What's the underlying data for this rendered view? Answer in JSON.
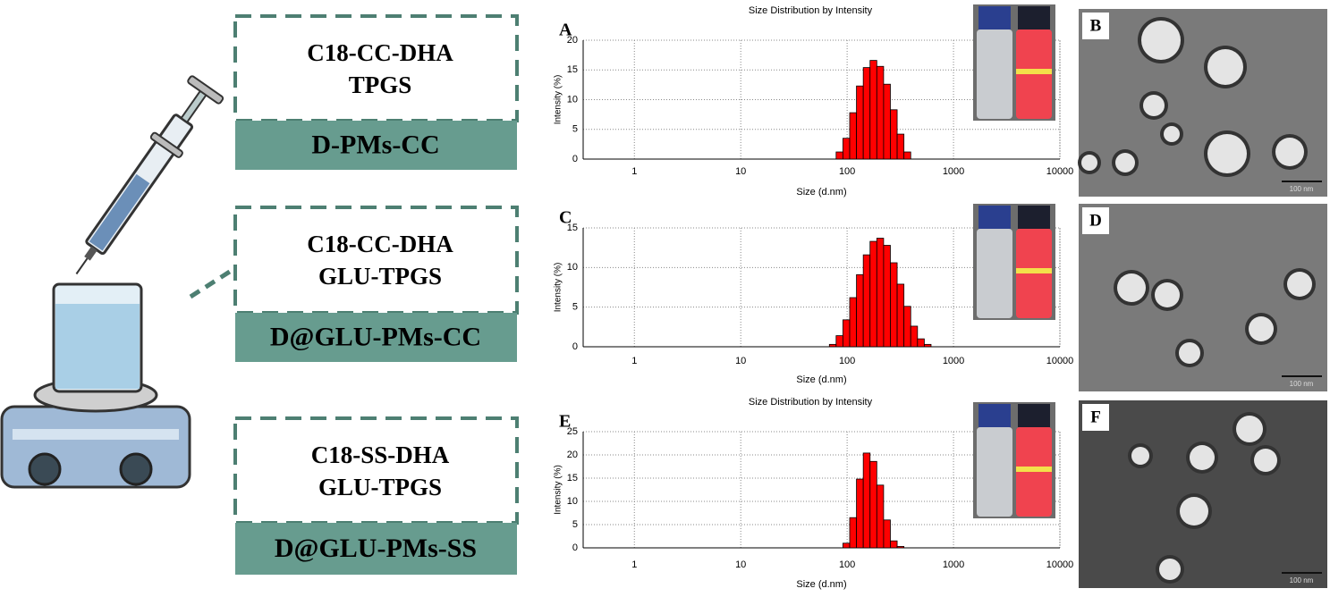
{
  "formulations": [
    {
      "lines": [
        "C18-CC-DHA",
        "TPGS"
      ],
      "name": "D-PMs-CC"
    },
    {
      "lines": [
        "C18-CC-DHA",
        "GLU-TPGS"
      ],
      "name": "D@GLU-PMs-CC"
    },
    {
      "lines": [
        "C18-SS-DHA",
        "GLU-TPGS"
      ],
      "name": "D@GLU-PMs-SS"
    }
  ],
  "tem_panels": [
    {
      "label": "B",
      "scale": "100 nm"
    },
    {
      "label": "D",
      "scale": "100 nm"
    },
    {
      "label": "F",
      "scale": "100 nm"
    }
  ],
  "chart_data": [
    {
      "type": "histogram",
      "panel": "A",
      "title": "Size Distribution by Intensity",
      "x_label": "Size (d.nm)",
      "y_label": "Intensity (%)",
      "bins": [
        78.8,
        91.3,
        105.7,
        122.4,
        141.8,
        164.2,
        190.1,
        220.2,
        255.0,
        295.3,
        342.0,
        396.1
      ],
      "values": [
        1.2,
        3.5,
        7.8,
        12.3,
        15.4,
        16.6,
        15.6,
        12.6,
        8.3,
        4.2,
        1.2
      ],
      "color": "#ff0000",
      "log_x": true,
      "grid": true,
      "xlim": [
        0.33,
        10000
      ],
      "xticks": [
        1,
        10,
        100,
        1000,
        10000
      ],
      "ylim": [
        0,
        20
      ],
      "yticks": [
        0,
        5,
        10,
        15,
        20
      ]
    },
    {
      "type": "histogram",
      "panel": "C",
      "x_label": "Size (d.nm)",
      "y_label": "Intensity (%)",
      "bins": [
        68.1,
        78.8,
        91.3,
        105.7,
        122.4,
        141.8,
        164.2,
        190.1,
        220.2,
        255.0,
        295.3,
        342.0,
        396.1,
        458.7,
        531.2,
        615.1
      ],
      "values": [
        0.3,
        1.4,
        3.4,
        6.2,
        9.1,
        11.6,
        13.3,
        13.7,
        12.8,
        10.6,
        7.9,
        5.1,
        2.6,
        1.0,
        0.3
      ],
      "color": "#ff0000",
      "log_x": true,
      "grid": true,
      "xlim": [
        0.33,
        10000
      ],
      "xticks": [
        1,
        10,
        100,
        1000,
        10000
      ],
      "ylim": [
        0,
        15
      ],
      "yticks": [
        0,
        5,
        10,
        15
      ]
    },
    {
      "type": "histogram",
      "panel": "E",
      "title": "Size Distribution by Intensity",
      "x_label": "Size (d.nm)",
      "y_label": "Intensity (%)",
      "bins": [
        91.3,
        105.7,
        122.4,
        141.8,
        164.2,
        190.1,
        220.2,
        255.0,
        295.3,
        342.0
      ],
      "values": [
        1.0,
        6.5,
        14.8,
        20.4,
        18.6,
        13.5,
        6.0,
        1.5,
        0.3
      ],
      "color": "#ff0000",
      "log_x": true,
      "grid": true,
      "xlim": [
        0.33,
        10000
      ],
      "xticks": [
        1,
        10,
        100,
        1000,
        10000
      ],
      "ylim": [
        0,
        25
      ],
      "yticks": [
        0,
        5,
        10,
        15,
        20,
        25
      ]
    }
  ]
}
